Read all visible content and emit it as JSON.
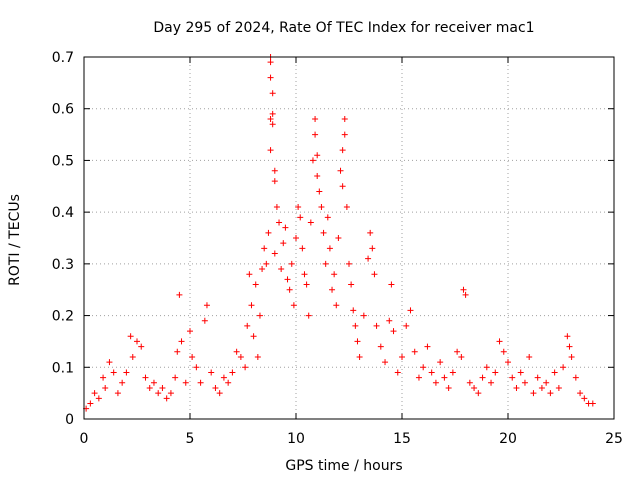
{
  "chart_data": {
    "type": "scatter",
    "title": "Day 295 of 2024, Rate Of TEC Index for receiver mac1",
    "xlabel": "GPS time / hours",
    "ylabel": "ROTI / TECUs",
    "xlim": [
      0,
      25
    ],
    "ylim": [
      0,
      0.7
    ],
    "xticks": [
      0,
      5,
      10,
      15,
      20,
      25
    ],
    "yticks": [
      0,
      0.1,
      0.2,
      0.3,
      0.4,
      0.5,
      0.6,
      0.7
    ],
    "xtick_labels": [
      "0",
      "5",
      "10",
      "15",
      "20",
      "25"
    ],
    "ytick_labels": [
      "0",
      "0.1",
      "0.2",
      "0.3",
      "0.4",
      "0.5",
      "0.6",
      "0.7"
    ],
    "grid": true,
    "marker": "+",
    "series": [
      {
        "name": "ROTI",
        "color": "#ff0000",
        "points": [
          [
            0.1,
            0.02
          ],
          [
            0.3,
            0.03
          ],
          [
            0.5,
            0.05
          ],
          [
            0.7,
            0.04
          ],
          [
            0.9,
            0.08
          ],
          [
            1.0,
            0.06
          ],
          [
            1.2,
            0.11
          ],
          [
            1.4,
            0.09
          ],
          [
            1.6,
            0.05
          ],
          [
            1.8,
            0.07
          ],
          [
            2.0,
            0.09
          ],
          [
            2.2,
            0.16
          ],
          [
            2.3,
            0.12
          ],
          [
            2.5,
            0.15
          ],
          [
            2.7,
            0.14
          ],
          [
            2.9,
            0.08
          ],
          [
            3.1,
            0.06
          ],
          [
            3.3,
            0.07
          ],
          [
            3.5,
            0.05
          ],
          [
            3.7,
            0.06
          ],
          [
            3.9,
            0.04
          ],
          [
            4.1,
            0.05
          ],
          [
            4.3,
            0.08
          ],
          [
            4.4,
            0.13
          ],
          [
            4.5,
            0.24
          ],
          [
            4.6,
            0.15
          ],
          [
            4.8,
            0.07
          ],
          [
            5.0,
            0.17
          ],
          [
            5.1,
            0.12
          ],
          [
            5.3,
            0.1
          ],
          [
            5.5,
            0.07
          ],
          [
            5.7,
            0.19
          ],
          [
            5.8,
            0.22
          ],
          [
            6.0,
            0.09
          ],
          [
            6.2,
            0.06
          ],
          [
            6.4,
            0.05
          ],
          [
            6.6,
            0.08
          ],
          [
            6.8,
            0.07
          ],
          [
            7.0,
            0.09
          ],
          [
            7.2,
            0.13
          ],
          [
            7.4,
            0.12
          ],
          [
            7.6,
            0.1
          ],
          [
            7.7,
            0.18
          ],
          [
            7.8,
            0.28
          ],
          [
            7.9,
            0.22
          ],
          [
            8.0,
            0.16
          ],
          [
            8.1,
            0.26
          ],
          [
            8.2,
            0.12
          ],
          [
            8.3,
            0.2
          ],
          [
            8.4,
            0.29
          ],
          [
            8.5,
            0.33
          ],
          [
            8.6,
            0.3
          ],
          [
            8.7,
            0.36
          ],
          [
            8.8,
            0.7
          ],
          [
            8.8,
            0.69
          ],
          [
            8.8,
            0.66
          ],
          [
            8.9,
            0.63
          ],
          [
            8.9,
            0.59
          ],
          [
            8.8,
            0.58
          ],
          [
            8.9,
            0.57
          ],
          [
            8.8,
            0.52
          ],
          [
            9.0,
            0.48
          ],
          [
            9.0,
            0.46
          ],
          [
            9.1,
            0.41
          ],
          [
            9.2,
            0.38
          ],
          [
            9.0,
            0.32
          ],
          [
            9.3,
            0.29
          ],
          [
            9.4,
            0.34
          ],
          [
            9.5,
            0.37
          ],
          [
            9.6,
            0.27
          ],
          [
            9.7,
            0.25
          ],
          [
            9.8,
            0.3
          ],
          [
            9.9,
            0.22
          ],
          [
            10.0,
            0.35
          ],
          [
            10.1,
            0.41
          ],
          [
            10.2,
            0.39
          ],
          [
            10.3,
            0.33
          ],
          [
            10.4,
            0.28
          ],
          [
            10.5,
            0.26
          ],
          [
            10.6,
            0.2
          ],
          [
            10.7,
            0.38
          ],
          [
            10.8,
            0.5
          ],
          [
            10.9,
            0.55
          ],
          [
            10.9,
            0.58
          ],
          [
            11.0,
            0.51
          ],
          [
            11.0,
            0.47
          ],
          [
            11.1,
            0.44
          ],
          [
            11.2,
            0.41
          ],
          [
            11.3,
            0.36
          ],
          [
            11.4,
            0.3
          ],
          [
            11.5,
            0.39
          ],
          [
            11.6,
            0.33
          ],
          [
            11.7,
            0.25
          ],
          [
            11.8,
            0.28
          ],
          [
            11.9,
            0.22
          ],
          [
            12.0,
            0.35
          ],
          [
            12.1,
            0.48
          ],
          [
            12.2,
            0.52
          ],
          [
            12.3,
            0.58
          ],
          [
            12.3,
            0.55
          ],
          [
            12.2,
            0.45
          ],
          [
            12.4,
            0.41
          ],
          [
            12.5,
            0.3
          ],
          [
            12.6,
            0.26
          ],
          [
            12.7,
            0.21
          ],
          [
            12.8,
            0.18
          ],
          [
            12.9,
            0.15
          ],
          [
            13.0,
            0.12
          ],
          [
            13.2,
            0.2
          ],
          [
            13.4,
            0.31
          ],
          [
            13.5,
            0.36
          ],
          [
            13.6,
            0.33
          ],
          [
            13.7,
            0.28
          ],
          [
            13.8,
            0.18
          ],
          [
            14.0,
            0.14
          ],
          [
            14.2,
            0.11
          ],
          [
            14.4,
            0.19
          ],
          [
            14.5,
            0.26
          ],
          [
            14.6,
            0.17
          ],
          [
            14.8,
            0.09
          ],
          [
            15.0,
            0.12
          ],
          [
            15.2,
            0.18
          ],
          [
            15.4,
            0.21
          ],
          [
            15.6,
            0.13
          ],
          [
            15.8,
            0.08
          ],
          [
            16.0,
            0.1
          ],
          [
            16.2,
            0.14
          ],
          [
            16.4,
            0.09
          ],
          [
            16.6,
            0.07
          ],
          [
            16.8,
            0.11
          ],
          [
            17.0,
            0.08
          ],
          [
            17.2,
            0.06
          ],
          [
            17.4,
            0.09
          ],
          [
            17.6,
            0.13
          ],
          [
            17.8,
            0.12
          ],
          [
            17.9,
            0.25
          ],
          [
            18.0,
            0.24
          ],
          [
            18.2,
            0.07
          ],
          [
            18.4,
            0.06
          ],
          [
            18.6,
            0.05
          ],
          [
            18.8,
            0.08
          ],
          [
            19.0,
            0.1
          ],
          [
            19.2,
            0.07
          ],
          [
            19.4,
            0.09
          ],
          [
            19.6,
            0.15
          ],
          [
            19.8,
            0.13
          ],
          [
            20.0,
            0.11
          ],
          [
            20.2,
            0.08
          ],
          [
            20.4,
            0.06
          ],
          [
            20.6,
            0.09
          ],
          [
            20.8,
            0.07
          ],
          [
            21.0,
            0.12
          ],
          [
            21.2,
            0.05
          ],
          [
            21.4,
            0.08
          ],
          [
            21.6,
            0.06
          ],
          [
            21.8,
            0.07
          ],
          [
            22.0,
            0.05
          ],
          [
            22.2,
            0.09
          ],
          [
            22.4,
            0.06
          ],
          [
            22.6,
            0.1
          ],
          [
            22.8,
            0.16
          ],
          [
            22.9,
            0.14
          ],
          [
            23.0,
            0.12
          ],
          [
            23.2,
            0.08
          ],
          [
            23.4,
            0.05
          ],
          [
            23.6,
            0.04
          ],
          [
            23.8,
            0.03
          ],
          [
            24.0,
            0.03
          ]
        ]
      }
    ]
  }
}
